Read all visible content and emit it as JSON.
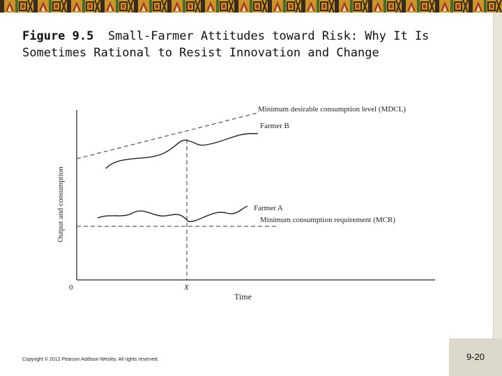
{
  "header": {
    "figure_label": "Figure 9.5",
    "title_text": "Small-Farmer Attitudes toward Risk: Why It Is Sometimes Rational to Resist Innovation and Change"
  },
  "diagram": {
    "y_axis_label": "Output and consumption",
    "x_axis_label": "Time",
    "origin_label": "0",
    "x_marker_label": "X",
    "mdcl_label": "Minimum desirable consumption level (MDCL)",
    "farmer_b_label": "Farmer B",
    "farmer_a_label": "Farmer A",
    "mcr_label": "Minimum consumption requirement (MCR)"
  },
  "footer": {
    "copyright": "Copyright © 2012 Pearson Addison-Wesley. All rights reserved.",
    "slide_number": "9-20"
  },
  "colors": {
    "banner_bg": "#c9932e",
    "banner_dark": "#3a2a1a",
    "banner_red": "#a63a1e",
    "banner_green": "#4c6b2a",
    "banner_cream": "#e9d9a8"
  }
}
